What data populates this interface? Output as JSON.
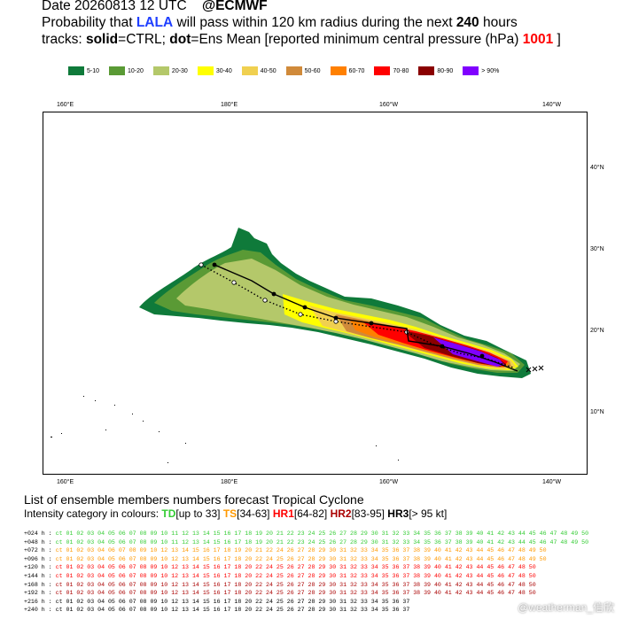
{
  "header": {
    "line1_a": "Date 20260813 12 UTC",
    "line1_b": "@ECMWF",
    "line2_a": "Probability that",
    "line2_storm": "LALA",
    "line2_b": "will pass within 120 km radius during the next",
    "line2_hours": "240",
    "line2_c": "hours",
    "line3_a": "tracks:",
    "line3_solid": "solid",
    "line3_b": "=CTRL;",
    "line3_dot": "dot",
    "line3_c": "=Ens Mean [reported minimum central pressure (hPa)",
    "line3_pressure": "1001",
    "line3_d": "]",
    "storm_color": "#1f3fff",
    "pressure_color": "#ff0000"
  },
  "legend": [
    {
      "label": "5-10",
      "color": "#0f7a3a"
    },
    {
      "label": "10-20",
      "color": "#5a9a35"
    },
    {
      "label": "20-30",
      "color": "#b4c86a"
    },
    {
      "label": "30-40",
      "color": "#ffff00"
    },
    {
      "label": "40-50",
      "color": "#f0d050"
    },
    {
      "label": "50-60",
      "color": "#d08a3a"
    },
    {
      "label": "60-70",
      "color": "#ff8000"
    },
    {
      "label": "70-80",
      "color": "#ff0000"
    },
    {
      "label": "80-90",
      "color": "#8a0000"
    },
    {
      "label": "> 90%",
      "color": "#8000ff"
    }
  ],
  "map": {
    "lon_labels_top": [
      "160°E",
      "180°E",
      "160°W",
      "140°W"
    ],
    "lon_labels_bottom": [
      "160°E",
      "180°E",
      "160°W",
      "140°W"
    ],
    "lat_labels": [
      "40°N",
      "30°N",
      "20°N",
      "10°N"
    ]
  },
  "list": {
    "title": "List of ensemble members numbers forecast Tropical Cyclone",
    "sub_a": "Intensity category in colours:",
    "sub_td": "TD",
    "sub_td_r": "[up to 33]",
    "sub_ts": "TS",
    "sub_ts_r": "[34-63]",
    "sub_hr1": "HR1",
    "sub_hr1_r": "[64-82]",
    "sub_hr2": "HR2",
    "sub_hr2_r": "[83-95]",
    "sub_hr3": "HR3",
    "sub_hr3_r": "[> 95 kt]",
    "rows": [
      {
        "h": "+024 h :",
        "t": "ct 01 02 03 04 05 06 07 08 09 10 11 12 13 14 15 16 17 18 19 20 21 22 23 24 25 26 27 28 29 30 31 32 33 34 35 36 37 38 39 40 41 42 43 44 45 46 47 48 49 50"
      },
      {
        "h": "+048 h :",
        "t": "ct 01 02 03 04 05 06 07 08 09 10 11 12 13 14 15 16 17 18 19 20 21 22 23 24 25 26 27 28 29 30 31 32 33 34 35 36 37 38 39 40 41 42 43 44 45 46 47 48 49 50"
      },
      {
        "h": "+072 h :",
        "t": "ct 01 02 03 04    06 07 08 09 10    12 13 14 15 16 17 18 19 20 21 22    24    26 27 28 29 30 31 32 33 34 35 36 37 38 39 40 41 42 43 44 45 46 47 48 49 50"
      },
      {
        "h": "+096 h :",
        "t": "ct 01 02 03 04 05 06 07 08 09 10    12 13 14 15 16 17 18    20    22    24 25 26 27 28 29 30 31 32 33 34 35 36 37 38 39 40 41 42 43 44 45 46 47 48 49 50"
      },
      {
        "h": "+120 h :",
        "t": "ct 01 02 03 04 05 06 07 08 09 10    12 13 14 15 16 17 18    20    22    24 25 26 27 28 29 30 31 32 33 34 35 36 37 38 39 40 41 42 43 44 45 46 47 48    50"
      },
      {
        "h": "+144 h :",
        "t": "ct 01 02 03 04 05 06 07 08 09 10    12 13 14 15 16 17 18    20    22    24 25 26 27 28 29 30 31 32 33 34 35 36 37 38 39 40 41 42 43 44 45 46 47 48    50"
      },
      {
        "h": "+168 h :",
        "t": "ct 01 02 03 04 05 06 07 08 09 10    12 13 14 15 16 17 18    20    22    24 25 26 27 28 29 30 31 32 33 34 35 36 37 38 39 40 41 42 43 44 45 46 47 48    50"
      },
      {
        "h": "+192 h :",
        "t": "ct 01 02 03 04 05 06 07 08 09 10    12 13 14 15 16 17 18    20    22    24 25 26 27 28 29 30 31 32 33 34 35 36 37 38 39 40 41 42 43 44 45 46 47 48    50"
      },
      {
        "h": "+216 h :",
        "t": "ct 01 02 03 04 05 06 07 08 09 10    12 13 14 15 16 17 18    20    22    24 25 26 27 28 29 30 31 32 33 34 35 36 37"
      },
      {
        "h": "+240 h :",
        "t": "ct 01 02 03 04 05 06 07 08 09 10    12 13 14 15 16 17 18    20    22    24 25 26 27 28 29 30 31 32 33 34 35 36 37"
      }
    ]
  },
  "watermark": "@weatherman_信欣"
}
